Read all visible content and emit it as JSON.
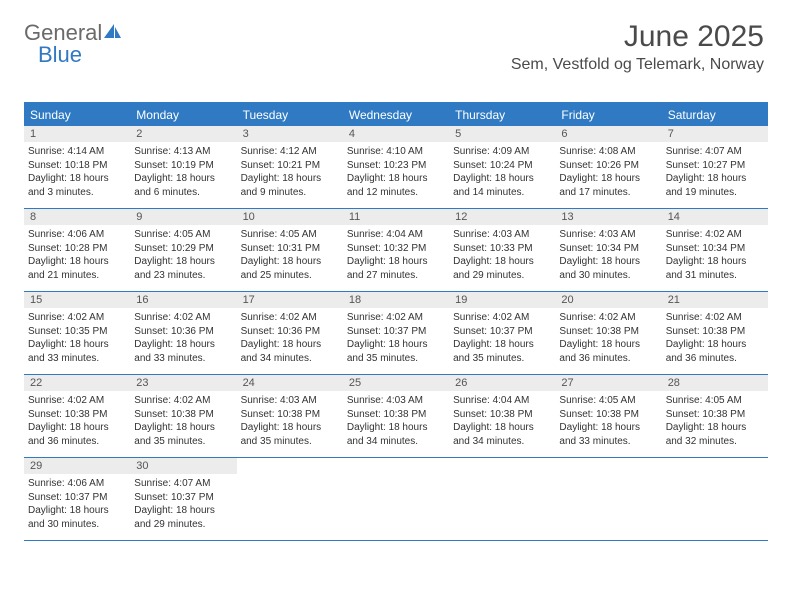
{
  "logo": {
    "text1": "General",
    "text2": "Blue"
  },
  "title": "June 2025",
  "location": "Sem, Vestfold og Telemark, Norway",
  "colors": {
    "accent": "#2f7ac2",
    "header_bg": "#2f7ac2",
    "header_text": "#ffffff",
    "daynum_bg": "#ececec",
    "text": "#333333",
    "title_text": "#4a4a4a",
    "logo_gray": "#6a6a6a"
  },
  "weekdays": [
    "Sunday",
    "Monday",
    "Tuesday",
    "Wednesday",
    "Thursday",
    "Friday",
    "Saturday"
  ],
  "weeks": [
    [
      {
        "n": "1",
        "sunrise": "Sunrise: 4:14 AM",
        "sunset": "Sunset: 10:18 PM",
        "daylight": "Daylight: 18 hours and 3 minutes."
      },
      {
        "n": "2",
        "sunrise": "Sunrise: 4:13 AM",
        "sunset": "Sunset: 10:19 PM",
        "daylight": "Daylight: 18 hours and 6 minutes."
      },
      {
        "n": "3",
        "sunrise": "Sunrise: 4:12 AM",
        "sunset": "Sunset: 10:21 PM",
        "daylight": "Daylight: 18 hours and 9 minutes."
      },
      {
        "n": "4",
        "sunrise": "Sunrise: 4:10 AM",
        "sunset": "Sunset: 10:23 PM",
        "daylight": "Daylight: 18 hours and 12 minutes."
      },
      {
        "n": "5",
        "sunrise": "Sunrise: 4:09 AM",
        "sunset": "Sunset: 10:24 PM",
        "daylight": "Daylight: 18 hours and 14 minutes."
      },
      {
        "n": "6",
        "sunrise": "Sunrise: 4:08 AM",
        "sunset": "Sunset: 10:26 PM",
        "daylight": "Daylight: 18 hours and 17 minutes."
      },
      {
        "n": "7",
        "sunrise": "Sunrise: 4:07 AM",
        "sunset": "Sunset: 10:27 PM",
        "daylight": "Daylight: 18 hours and 19 minutes."
      }
    ],
    [
      {
        "n": "8",
        "sunrise": "Sunrise: 4:06 AM",
        "sunset": "Sunset: 10:28 PM",
        "daylight": "Daylight: 18 hours and 21 minutes."
      },
      {
        "n": "9",
        "sunrise": "Sunrise: 4:05 AM",
        "sunset": "Sunset: 10:29 PM",
        "daylight": "Daylight: 18 hours and 23 minutes."
      },
      {
        "n": "10",
        "sunrise": "Sunrise: 4:05 AM",
        "sunset": "Sunset: 10:31 PM",
        "daylight": "Daylight: 18 hours and 25 minutes."
      },
      {
        "n": "11",
        "sunrise": "Sunrise: 4:04 AM",
        "sunset": "Sunset: 10:32 PM",
        "daylight": "Daylight: 18 hours and 27 minutes."
      },
      {
        "n": "12",
        "sunrise": "Sunrise: 4:03 AM",
        "sunset": "Sunset: 10:33 PM",
        "daylight": "Daylight: 18 hours and 29 minutes."
      },
      {
        "n": "13",
        "sunrise": "Sunrise: 4:03 AM",
        "sunset": "Sunset: 10:34 PM",
        "daylight": "Daylight: 18 hours and 30 minutes."
      },
      {
        "n": "14",
        "sunrise": "Sunrise: 4:02 AM",
        "sunset": "Sunset: 10:34 PM",
        "daylight": "Daylight: 18 hours and 31 minutes."
      }
    ],
    [
      {
        "n": "15",
        "sunrise": "Sunrise: 4:02 AM",
        "sunset": "Sunset: 10:35 PM",
        "daylight": "Daylight: 18 hours and 33 minutes."
      },
      {
        "n": "16",
        "sunrise": "Sunrise: 4:02 AM",
        "sunset": "Sunset: 10:36 PM",
        "daylight": "Daylight: 18 hours and 33 minutes."
      },
      {
        "n": "17",
        "sunrise": "Sunrise: 4:02 AM",
        "sunset": "Sunset: 10:36 PM",
        "daylight": "Daylight: 18 hours and 34 minutes."
      },
      {
        "n": "18",
        "sunrise": "Sunrise: 4:02 AM",
        "sunset": "Sunset: 10:37 PM",
        "daylight": "Daylight: 18 hours and 35 minutes."
      },
      {
        "n": "19",
        "sunrise": "Sunrise: 4:02 AM",
        "sunset": "Sunset: 10:37 PM",
        "daylight": "Daylight: 18 hours and 35 minutes."
      },
      {
        "n": "20",
        "sunrise": "Sunrise: 4:02 AM",
        "sunset": "Sunset: 10:38 PM",
        "daylight": "Daylight: 18 hours and 36 minutes."
      },
      {
        "n": "21",
        "sunrise": "Sunrise: 4:02 AM",
        "sunset": "Sunset: 10:38 PM",
        "daylight": "Daylight: 18 hours and 36 minutes."
      }
    ],
    [
      {
        "n": "22",
        "sunrise": "Sunrise: 4:02 AM",
        "sunset": "Sunset: 10:38 PM",
        "daylight": "Daylight: 18 hours and 36 minutes."
      },
      {
        "n": "23",
        "sunrise": "Sunrise: 4:02 AM",
        "sunset": "Sunset: 10:38 PM",
        "daylight": "Daylight: 18 hours and 35 minutes."
      },
      {
        "n": "24",
        "sunrise": "Sunrise: 4:03 AM",
        "sunset": "Sunset: 10:38 PM",
        "daylight": "Daylight: 18 hours and 35 minutes."
      },
      {
        "n": "25",
        "sunrise": "Sunrise: 4:03 AM",
        "sunset": "Sunset: 10:38 PM",
        "daylight": "Daylight: 18 hours and 34 minutes."
      },
      {
        "n": "26",
        "sunrise": "Sunrise: 4:04 AM",
        "sunset": "Sunset: 10:38 PM",
        "daylight": "Daylight: 18 hours and 34 minutes."
      },
      {
        "n": "27",
        "sunrise": "Sunrise: 4:05 AM",
        "sunset": "Sunset: 10:38 PM",
        "daylight": "Daylight: 18 hours and 33 minutes."
      },
      {
        "n": "28",
        "sunrise": "Sunrise: 4:05 AM",
        "sunset": "Sunset: 10:38 PM",
        "daylight": "Daylight: 18 hours and 32 minutes."
      }
    ],
    [
      {
        "n": "29",
        "sunrise": "Sunrise: 4:06 AM",
        "sunset": "Sunset: 10:37 PM",
        "daylight": "Daylight: 18 hours and 30 minutes."
      },
      {
        "n": "30",
        "sunrise": "Sunrise: 4:07 AM",
        "sunset": "Sunset: 10:37 PM",
        "daylight": "Daylight: 18 hours and 29 minutes."
      },
      null,
      null,
      null,
      null,
      null
    ]
  ]
}
